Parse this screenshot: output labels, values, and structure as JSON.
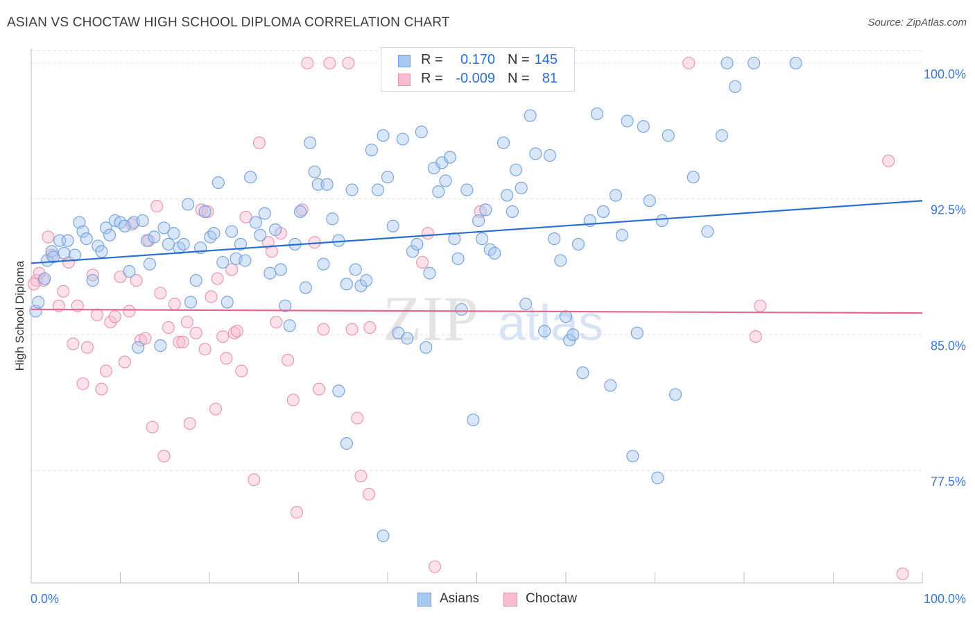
{
  "title": "ASIAN VS CHOCTAW HIGH SCHOOL DIPLOMA CORRELATION CHART",
  "source": "Source: ZipAtlas.com",
  "watermark": {
    "zip": "ZIP",
    "atlas": "atlas"
  },
  "legend": {
    "r_label": "R =",
    "n_label": "N =",
    "rows": [
      {
        "r": "0.170",
        "n": "145"
      },
      {
        "r": "-0.009",
        "n": "81"
      }
    ]
  },
  "bottom_legend": [
    "Asians",
    "Choctaw"
  ],
  "colors": {
    "asian_fill": "#a9c8f0",
    "asian_stroke": "#6f9fdc",
    "asian_line": "#2a6fd0",
    "choctaw_fill": "#f7bcd0",
    "choctaw_stroke": "#ea90ae",
    "choctaw_line": "#e4678f",
    "axis_label": "#3a78d4",
    "grid": "#e1e1e1"
  },
  "chart_data": {
    "type": "scatter",
    "title": "ASIAN VS CHOCTAW HIGH SCHOOL DIPLOMA CORRELATION CHART",
    "xlabel": "",
    "ylabel": "High School Diploma",
    "xlim": [
      0,
      100
    ],
    "ylim": [
      71.3,
      100.8
    ],
    "x_tick_labels": [
      "0.0%",
      "100.0%"
    ],
    "y_ticks": [
      100.0,
      92.5,
      85.0,
      77.5
    ],
    "y_tick_labels": [
      "100.0%",
      "92.5%",
      "85.0%",
      "77.5%"
    ],
    "grid": true,
    "legend_position": "top-center",
    "series": [
      {
        "name": "Asians",
        "trend": {
          "x": [
            0,
            100
          ],
          "y": [
            88.95,
            92.4
          ]
        },
        "points": [
          [
            0.5,
            86.3
          ],
          [
            0.8,
            86.8
          ],
          [
            1.5,
            88.1
          ],
          [
            1.8,
            89.1
          ],
          [
            2.3,
            89.6
          ],
          [
            2.5,
            89.3
          ],
          [
            3.2,
            90.2
          ],
          [
            3.7,
            89.5
          ],
          [
            4.1,
            90.2
          ],
          [
            4.9,
            89.4
          ],
          [
            5.4,
            91.2
          ],
          [
            5.8,
            90.7
          ],
          [
            6.2,
            90.3
          ],
          [
            6.9,
            88.0
          ],
          [
            7.5,
            89.9
          ],
          [
            7.9,
            89.6
          ],
          [
            8.4,
            90.9
          ],
          [
            8.8,
            90.5
          ],
          [
            9.4,
            91.3
          ],
          [
            10.0,
            91.2
          ],
          [
            10.5,
            91.0
          ],
          [
            11.0,
            88.5
          ],
          [
            11.5,
            91.2
          ],
          [
            12.0,
            84.3
          ],
          [
            12.5,
            91.3
          ],
          [
            13.0,
            90.2
          ],
          [
            13.3,
            88.9
          ],
          [
            13.8,
            90.4
          ],
          [
            14.5,
            84.4
          ],
          [
            14.9,
            90.9
          ],
          [
            15.4,
            90.0
          ],
          [
            16.0,
            90.6
          ],
          [
            16.6,
            89.8
          ],
          [
            17.1,
            90.0
          ],
          [
            17.6,
            92.2
          ],
          [
            17.9,
            86.8
          ],
          [
            18.5,
            88.0
          ],
          [
            19.0,
            89.8
          ],
          [
            19.5,
            91.8
          ],
          [
            20.1,
            90.4
          ],
          [
            20.5,
            90.6
          ],
          [
            21.0,
            93.4
          ],
          [
            21.5,
            89.0
          ],
          [
            22.0,
            86.8
          ],
          [
            22.5,
            90.7
          ],
          [
            23.0,
            89.2
          ],
          [
            23.5,
            90.0
          ],
          [
            24.0,
            89.1
          ],
          [
            24.6,
            93.7
          ],
          [
            25.2,
            91.2
          ],
          [
            25.7,
            90.5
          ],
          [
            26.2,
            91.7
          ],
          [
            26.8,
            88.4
          ],
          [
            27.4,
            90.8
          ],
          [
            28.0,
            88.6
          ],
          [
            28.5,
            86.6
          ],
          [
            29.0,
            85.5
          ],
          [
            29.6,
            90.0
          ],
          [
            30.2,
            91.8
          ],
          [
            30.8,
            87.6
          ],
          [
            31.3,
            95.6
          ],
          [
            31.8,
            94.0
          ],
          [
            32.2,
            93.3
          ],
          [
            32.8,
            88.9
          ],
          [
            33.2,
            93.3
          ],
          [
            33.8,
            91.4
          ],
          [
            34.5,
            90.2
          ],
          [
            35.4,
            87.8
          ],
          [
            36.0,
            93.0
          ],
          [
            36.4,
            88.6
          ],
          [
            37.0,
            87.7
          ],
          [
            37.6,
            88.0
          ],
          [
            38.2,
            95.2
          ],
          [
            38.9,
            93.0
          ],
          [
            39.5,
            96.0
          ],
          [
            40.0,
            93.7
          ],
          [
            40.6,
            91.0
          ],
          [
            41.2,
            85.1
          ],
          [
            41.7,
            95.8
          ],
          [
            42.2,
            84.8
          ],
          [
            42.8,
            89.6
          ],
          [
            43.3,
            90.0
          ],
          [
            43.8,
            96.2
          ],
          [
            44.3,
            84.3
          ],
          [
            44.7,
            88.4
          ],
          [
            45.2,
            94.2
          ],
          [
            45.7,
            92.9
          ],
          [
            46.1,
            94.5
          ],
          [
            46.5,
            93.5
          ],
          [
            47.0,
            94.8
          ],
          [
            47.5,
            90.3
          ],
          [
            47.9,
            89.2
          ],
          [
            48.3,
            86.4
          ],
          [
            48.9,
            93.0
          ],
          [
            49.6,
            80.3
          ],
          [
            50.2,
            91.3
          ],
          [
            50.6,
            90.3
          ],
          [
            51.0,
            91.9
          ],
          [
            51.5,
            89.7
          ],
          [
            52.0,
            89.5
          ],
          [
            53.0,
            95.6
          ],
          [
            53.4,
            92.7
          ],
          [
            54.0,
            91.8
          ],
          [
            54.4,
            94.1
          ],
          [
            55.0,
            93.1
          ],
          [
            55.5,
            86.7
          ],
          [
            56.0,
            97.1
          ],
          [
            56.6,
            95.0
          ],
          [
            57.6,
            85.2
          ],
          [
            58.2,
            94.9
          ],
          [
            58.7,
            90.3
          ],
          [
            59.4,
            89.1
          ],
          [
            60.0,
            86.0
          ],
          [
            60.4,
            84.7
          ],
          [
            60.8,
            85.0
          ],
          [
            61.4,
            90.0
          ],
          [
            61.9,
            82.9
          ],
          [
            62.7,
            91.3
          ],
          [
            63.5,
            97.2
          ],
          [
            64.2,
            91.8
          ],
          [
            65.0,
            82.2
          ],
          [
            65.6,
            92.7
          ],
          [
            66.3,
            90.5
          ],
          [
            66.9,
            96.8
          ],
          [
            67.5,
            78.3
          ],
          [
            68.0,
            85.1
          ],
          [
            68.7,
            96.5
          ],
          [
            69.4,
            92.4
          ],
          [
            70.3,
            77.1
          ],
          [
            70.8,
            91.3
          ],
          [
            71.5,
            96.0
          ],
          [
            72.3,
            81.7
          ],
          [
            74.3,
            93.7
          ],
          [
            75.9,
            90.7
          ],
          [
            77.5,
            96.0
          ],
          [
            78.1,
            100.0
          ],
          [
            79.0,
            98.7
          ],
          [
            81.1,
            100.0
          ],
          [
            85.8,
            100.0
          ],
          [
            39.5,
            73.9
          ],
          [
            35.4,
            79.0
          ],
          [
            34.5,
            81.9
          ]
        ]
      },
      {
        "name": "Choctaw",
        "trend": {
          "x": [
            0,
            100
          ],
          "y": [
            86.4,
            86.2
          ]
        },
        "points": [
          [
            0.6,
            88.0
          ],
          [
            0.9,
            88.4
          ],
          [
            1.4,
            88.0
          ],
          [
            1.9,
            90.4
          ],
          [
            2.3,
            89.4
          ],
          [
            3.1,
            86.6
          ],
          [
            3.6,
            87.4
          ],
          [
            4.2,
            89.0
          ],
          [
            4.7,
            84.5
          ],
          [
            5.2,
            86.6
          ],
          [
            5.8,
            82.3
          ],
          [
            6.3,
            84.3
          ],
          [
            6.9,
            88.3
          ],
          [
            7.4,
            86.1
          ],
          [
            7.9,
            82.0
          ],
          [
            8.4,
            83.0
          ],
          [
            8.9,
            85.7
          ],
          [
            9.4,
            86.0
          ],
          [
            10.0,
            88.2
          ],
          [
            10.5,
            83.5
          ],
          [
            11.0,
            86.3
          ],
          [
            11.3,
            91.1
          ],
          [
            11.8,
            88.0
          ],
          [
            12.3,
            84.7
          ],
          [
            12.8,
            84.8
          ],
          [
            13.2,
            90.2
          ],
          [
            13.6,
            79.9
          ],
          [
            14.1,
            92.1
          ],
          [
            14.5,
            87.3
          ],
          [
            14.9,
            78.3
          ],
          [
            15.4,
            85.4
          ],
          [
            16.1,
            86.7
          ],
          [
            16.6,
            84.6
          ],
          [
            17.0,
            84.6
          ],
          [
            17.5,
            85.7
          ],
          [
            17.8,
            80.1
          ],
          [
            18.5,
            85.1
          ],
          [
            19.1,
            91.9
          ],
          [
            19.5,
            84.2
          ],
          [
            19.8,
            91.8
          ],
          [
            20.2,
            87.1
          ],
          [
            20.7,
            80.9
          ],
          [
            20.9,
            88.1
          ],
          [
            21.5,
            84.9
          ],
          [
            21.9,
            83.7
          ],
          [
            22.5,
            88.6
          ],
          [
            22.8,
            85.1
          ],
          [
            23.1,
            85.2
          ],
          [
            23.6,
            83.0
          ],
          [
            24.1,
            91.5
          ],
          [
            25.0,
            77.0
          ],
          [
            25.6,
            95.6
          ],
          [
            26.6,
            90.1
          ],
          [
            27.0,
            89.6
          ],
          [
            27.5,
            85.7
          ],
          [
            28.0,
            90.6
          ],
          [
            28.8,
            83.6
          ],
          [
            29.4,
            81.4
          ],
          [
            29.8,
            75.2
          ],
          [
            30.4,
            91.9
          ],
          [
            31.0,
            100.0
          ],
          [
            31.8,
            90.1
          ],
          [
            32.3,
            82.0
          ],
          [
            32.8,
            85.3
          ],
          [
            33.5,
            100.0
          ],
          [
            35.6,
            100.0
          ],
          [
            36.0,
            85.3
          ],
          [
            36.6,
            80.4
          ],
          [
            37.0,
            77.2
          ],
          [
            37.9,
            76.2
          ],
          [
            38.0,
            85.4
          ],
          [
            43.9,
            89.0
          ],
          [
            44.5,
            90.6
          ],
          [
            45.3,
            72.2
          ],
          [
            50.4,
            91.8
          ],
          [
            73.8,
            100.0
          ],
          [
            81.3,
            84.9
          ],
          [
            81.8,
            86.6
          ],
          [
            96.2,
            94.6
          ],
          [
            97.8,
            71.8
          ],
          [
            0.3,
            87.8
          ]
        ]
      }
    ]
  }
}
